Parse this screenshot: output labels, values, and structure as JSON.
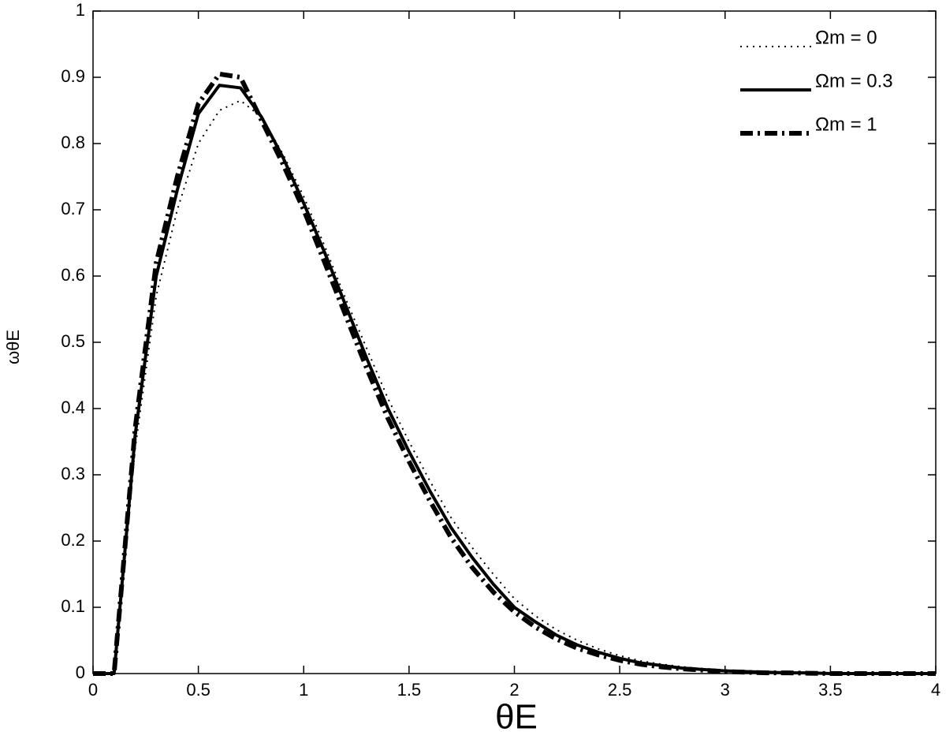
{
  "chart_data": {
    "type": "line",
    "xlabel": "θE",
    "ylabel": "ωθE",
    "x": [
      0,
      0.1,
      0.2,
      0.3,
      0.4,
      0.5,
      0.6,
      0.7,
      0.8,
      0.9,
      1,
      1.1,
      1.2,
      1.3,
      1.4,
      1.5,
      1.6,
      1.7,
      1.8,
      1.9,
      2,
      2.1,
      2.2,
      2.3,
      2.4,
      2.5,
      2.6,
      2.7,
      2.8,
      2.9,
      3,
      3.1,
      3.2,
      3.3,
      3.4,
      3.5,
      3.6,
      3.7,
      3.8,
      3.9,
      4
    ],
    "series": [
      {
        "name": "Ωm = 0",
        "color": "#000000",
        "style": "dotted",
        "values": [
          0,
          0,
          0.34,
          0.57,
          0.7,
          0.8,
          0.85,
          0.865,
          0.84,
          0.785,
          0.72,
          0.645,
          0.565,
          0.49,
          0.415,
          0.35,
          0.29,
          0.235,
          0.19,
          0.15,
          0.113,
          0.087,
          0.066,
          0.05,
          0.037,
          0.027,
          0.019,
          0.014,
          0.01,
          0.007,
          0.005,
          0.003,
          0.002,
          0.0015,
          0.001,
          0.0005,
          0,
          0,
          0,
          0,
          0
        ]
      },
      {
        "name": "Ωm = 0.3",
        "color": "#000000",
        "style": "solid",
        "values": [
          0,
          0,
          0.36,
          0.6,
          0.73,
          0.845,
          0.888,
          0.884,
          0.84,
          0.78,
          0.71,
          0.635,
          0.555,
          0.475,
          0.4,
          0.335,
          0.275,
          0.22,
          0.175,
          0.135,
          0.1,
          0.078,
          0.058,
          0.043,
          0.032,
          0.023,
          0.016,
          0.012,
          0.008,
          0.006,
          0.004,
          0.003,
          0.002,
          0.001,
          0.001,
          0,
          0,
          0,
          0,
          0,
          0
        ]
      },
      {
        "name": "Ωm = 1",
        "color": "#000000",
        "style": "dashdot",
        "values": [
          0,
          0,
          0.37,
          0.62,
          0.75,
          0.86,
          0.905,
          0.9,
          0.835,
          0.77,
          0.7,
          0.62,
          0.54,
          0.46,
          0.385,
          0.32,
          0.26,
          0.205,
          0.16,
          0.123,
          0.093,
          0.07,
          0.052,
          0.038,
          0.028,
          0.02,
          0.014,
          0.01,
          0.007,
          0.005,
          0.003,
          0.002,
          0.001,
          0.001,
          0.0005,
          0,
          0,
          0,
          0,
          0,
          0
        ]
      }
    ],
    "xlim": [
      0,
      4
    ],
    "xticks": [
      0,
      0.5,
      1,
      1.5,
      2,
      2.5,
      3,
      3.5,
      4
    ],
    "ylim": [
      0,
      1
    ],
    "yticks": [
      0,
      0.1,
      0.2,
      0.3,
      0.4,
      0.5,
      0.6,
      0.7,
      0.8,
      0.9,
      1
    ],
    "grid": false,
    "legend": "upper right"
  }
}
